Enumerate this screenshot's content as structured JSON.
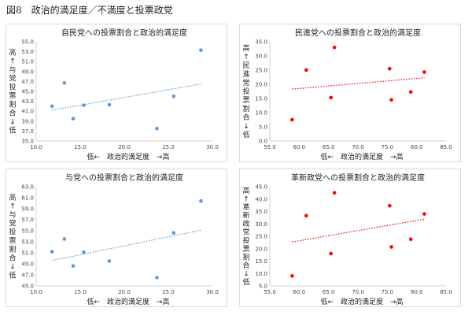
{
  "figure_title": "図8　政治的満足度／不満度と投票政党",
  "chart_data": [
    {
      "id": "tl",
      "type": "scatter",
      "title": "自民党への投票割合と政治的満足度",
      "ylabel": "高↑与党投票割合↓低",
      "xlabel": "低←　政治的満足度　→高",
      "xlim": [
        10.0,
        30.0
      ],
      "ylim": [
        35.0,
        55.0
      ],
      "xticks": [
        "10.0",
        "15.0",
        "20.0",
        "25.0",
        "30.0"
      ],
      "yticks": [
        "35.0",
        "37.0",
        "39.0",
        "41.0",
        "43.0",
        "45.0",
        "47.0",
        "49.0",
        "51.0",
        "53.0",
        "55.0"
      ],
      "color": "#5b9bd5",
      "points": [
        [
          11.8,
          42.0
        ],
        [
          13.2,
          46.7
        ],
        [
          14.2,
          39.5
        ],
        [
          15.4,
          42.2
        ],
        [
          18.3,
          42.3
        ],
        [
          23.7,
          37.5
        ],
        [
          25.6,
          44.0
        ],
        [
          28.7,
          53.3
        ]
      ],
      "trend": [
        [
          11.8,
          41.2
        ],
        [
          28.7,
          46.5
        ]
      ]
    },
    {
      "id": "tr",
      "type": "scatter",
      "title": "民進党への投票割合と政治的満足度",
      "ylabel": "高↑民進党投票割合↓低",
      "xlabel": "低←　政治的満足度　→高",
      "xlim": [
        55.0,
        85.0
      ],
      "ylim": [
        0.0,
        35.0
      ],
      "xticks": [
        "55.0",
        "60.0",
        "65.0",
        "70.0",
        "75.0",
        "80.0",
        "85.0"
      ],
      "yticks": [
        "0.0",
        "5.0",
        "10.0",
        "15.0",
        "20.0",
        "25.0",
        "30.0",
        "35.0"
      ],
      "color": "#ff0000",
      "points": [
        [
          58.8,
          7.5
        ],
        [
          61.2,
          25.0
        ],
        [
          65.4,
          15.3
        ],
        [
          66.0,
          33.0
        ],
        [
          75.4,
          25.5
        ],
        [
          75.7,
          14.5
        ],
        [
          79.0,
          17.3
        ],
        [
          81.3,
          24.3
        ]
      ],
      "trend": [
        [
          58.8,
          18.3
        ],
        [
          81.3,
          22.3
        ]
      ]
    },
    {
      "id": "bl",
      "type": "scatter",
      "title": "与党への投票割合と政治的満足度",
      "ylabel": "高↑与党投票割合↓低",
      "xlabel": "低←　政治的満足度　→高",
      "xlim": [
        10.0,
        30.0
      ],
      "ylim": [
        45.0,
        63.0
      ],
      "xticks": [
        "10.0",
        "15.0",
        "20.0",
        "25.0",
        "30.0"
      ],
      "yticks": [
        "45.0",
        "47.0",
        "49.0",
        "51.0",
        "53.0",
        "55.0",
        "57.0",
        "59.0",
        "61.0",
        "63.0"
      ],
      "color": "#5b9bd5",
      "points": [
        [
          11.8,
          51.2
        ],
        [
          13.2,
          53.5
        ],
        [
          14.2,
          48.6
        ],
        [
          15.4,
          51.1
        ],
        [
          18.3,
          49.5
        ],
        [
          23.7,
          46.5
        ],
        [
          25.6,
          54.6
        ],
        [
          28.7,
          60.4
        ]
      ],
      "trend": [
        [
          11.8,
          49.6
        ],
        [
          28.7,
          55.1
        ]
      ]
    },
    {
      "id": "br",
      "type": "scatter",
      "title": "革新政党への投票割合と政治的満足度",
      "ylabel": "高↑革新政党投票割合↓低",
      "xlabel": "低←　政治的満足度　→高",
      "xlim": [
        55.0,
        85.0
      ],
      "ylim": [
        5.0,
        45.0
      ],
      "xticks": [
        "55.0",
        "60.0",
        "65.0",
        "70.0",
        "75.0",
        "80.0",
        "85.0"
      ],
      "yticks": [
        "5.0",
        "10.0",
        "15.0",
        "20.0",
        "25.0",
        "30.0",
        "35.0",
        "40.0",
        "45.0"
      ],
      "color": "#ff0000",
      "points": [
        [
          58.8,
          9.0
        ],
        [
          61.2,
          33.3
        ],
        [
          65.4,
          18.0
        ],
        [
          66.0,
          42.5
        ],
        [
          75.4,
          37.3
        ],
        [
          75.7,
          20.7
        ],
        [
          79.0,
          23.8
        ],
        [
          81.3,
          34.0
        ]
      ],
      "trend": [
        [
          58.8,
          22.7
        ],
        [
          81.3,
          31.9
        ]
      ]
    }
  ]
}
